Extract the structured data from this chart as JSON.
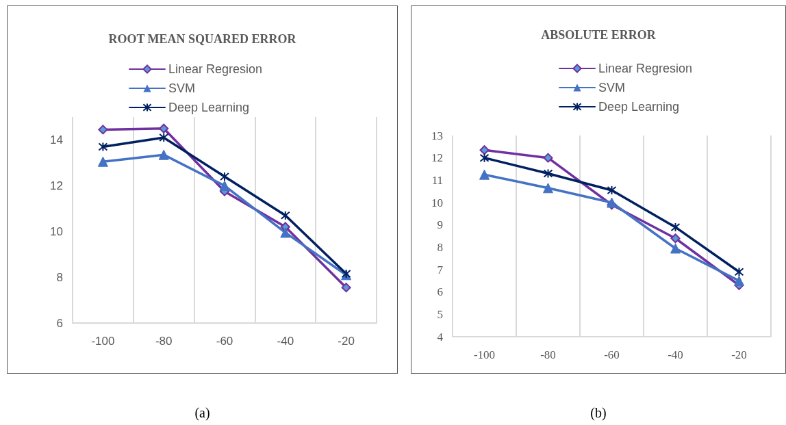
{
  "chart_data": [
    {
      "type": "line",
      "title": "ROOT MEAN SQUARED ERROR",
      "categories": [
        "-100",
        "-80",
        "-60",
        "-40",
        "-20"
      ],
      "ylim": [
        6,
        15
      ],
      "yticks": [
        6,
        8,
        10,
        12,
        14
      ],
      "grid": "x",
      "legend": "top",
      "annotations": [
        "(a)"
      ],
      "series": [
        {
          "name": "Linear Regresion",
          "color": "#7030a0",
          "marker": "diamond",
          "values": [
            14.45,
            14.5,
            11.75,
            10.2,
            7.55
          ]
        },
        {
          "name": "SVM",
          "color": "#4472c4",
          "marker": "triangle",
          "values": [
            13.05,
            13.35,
            12.0,
            9.95,
            8.1
          ]
        },
        {
          "name": "Deep Learning",
          "color": "#002060",
          "marker": "cross",
          "values": [
            13.7,
            14.1,
            12.4,
            10.7,
            8.15
          ]
        }
      ]
    },
    {
      "type": "line",
      "title": "ABSOLUTE ERROR",
      "categories": [
        "-100",
        "-80",
        "-60",
        "-40",
        "-20"
      ],
      "ylim": [
        4,
        13
      ],
      "yticks": [
        4,
        5,
        6,
        7,
        8,
        9,
        10,
        11,
        12,
        13
      ],
      "grid": "x",
      "legend": "top",
      "annotations": [
        "(b)"
      ],
      "series": [
        {
          "name": "Linear Regresion",
          "color": "#7030a0",
          "marker": "diamond",
          "values": [
            12.35,
            12.0,
            9.9,
            8.4,
            6.3
          ]
        },
        {
          "name": "SVM",
          "color": "#4472c4",
          "marker": "triangle",
          "values": [
            11.25,
            10.65,
            10.0,
            7.95,
            6.5
          ]
        },
        {
          "name": "Deep Learning",
          "color": "#002060",
          "marker": "cross",
          "values": [
            12.0,
            11.3,
            10.55,
            8.9,
            6.9
          ]
        }
      ]
    }
  ]
}
